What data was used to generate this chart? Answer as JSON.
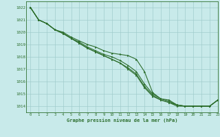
{
  "background_color": "#c8eaea",
  "grid_color": "#a0cccc",
  "line_color": "#2d6e2d",
  "xlabel": "Graphe pression niveau de la mer (hPa)",
  "ylim": [
    1013.5,
    1022.5
  ],
  "xlim": [
    -0.5,
    23
  ],
  "yticks": [
    1014,
    1015,
    1016,
    1017,
    1018,
    1019,
    1020,
    1021,
    1022
  ],
  "xticks": [
    0,
    1,
    2,
    3,
    4,
    5,
    6,
    7,
    8,
    9,
    10,
    11,
    12,
    13,
    14,
    15,
    16,
    17,
    18,
    19,
    20,
    21,
    22,
    23
  ],
  "series": [
    [
      1022.0,
      1021.0,
      1020.7,
      1020.2,
      1020.0,
      1019.6,
      1019.3,
      1019.0,
      1018.8,
      1018.5,
      1018.3,
      1018.2,
      1018.1,
      1017.8,
      1016.8,
      1015.1,
      1014.6,
      1014.5,
      1014.1,
      1014.0,
      1014.0,
      1014.0,
      1014.0,
      1014.5
    ],
    [
      1022.0,
      1021.0,
      1020.7,
      1020.2,
      1019.9,
      1019.5,
      1019.2,
      1018.8,
      1018.5,
      1018.2,
      1018.0,
      1017.7,
      1017.3,
      1016.8,
      1015.8,
      1015.0,
      1014.6,
      1014.4,
      1014.1,
      1014.0,
      1014.0,
      1014.0,
      1014.0,
      1014.5
    ],
    [
      1022.0,
      1021.0,
      1020.7,
      1020.2,
      1019.9,
      1019.5,
      1019.1,
      1018.7,
      1018.4,
      1018.1,
      1017.8,
      1017.5,
      1017.1,
      1016.6,
      1015.6,
      1014.9,
      1014.5,
      1014.3,
      1014.1,
      1014.0,
      1014.0,
      1014.0,
      1014.0,
      1014.5
    ],
    [
      1022.0,
      1021.0,
      1020.7,
      1020.2,
      1019.9,
      1019.5,
      1019.1,
      1018.7,
      1018.4,
      1018.1,
      1017.8,
      1017.5,
      1017.0,
      1016.5,
      1015.5,
      1014.8,
      1014.5,
      1014.3,
      1014.0,
      1014.0,
      1014.0,
      1014.0,
      1014.0,
      1014.5
    ]
  ]
}
